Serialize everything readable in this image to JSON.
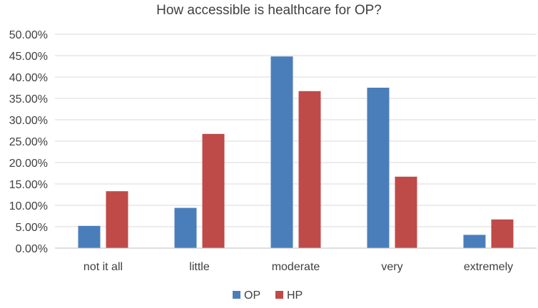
{
  "chart_data": {
    "type": "bar",
    "title": "How accessible is healthcare for OP?",
    "xlabel": "",
    "ylabel": "",
    "categories": [
      "not it all",
      "little",
      "moderate",
      "very",
      "extremely"
    ],
    "series": [
      {
        "name": "OP",
        "color": "#4a7ebb",
        "values": [
          5.2,
          9.4,
          44.8,
          37.5,
          3.1
        ]
      },
      {
        "name": "HP",
        "color": "#be4b48",
        "values": [
          13.3,
          26.7,
          36.7,
          16.7,
          6.7
        ]
      }
    ],
    "ylim": [
      0,
      50
    ],
    "y_ticks": [
      "0.00%",
      "5.00%",
      "10.00%",
      "15.00%",
      "20.00%",
      "25.00%",
      "30.00%",
      "35.00%",
      "40.00%",
      "45.00%",
      "50.00%"
    ],
    "grid": true,
    "legend_position": "bottom"
  }
}
